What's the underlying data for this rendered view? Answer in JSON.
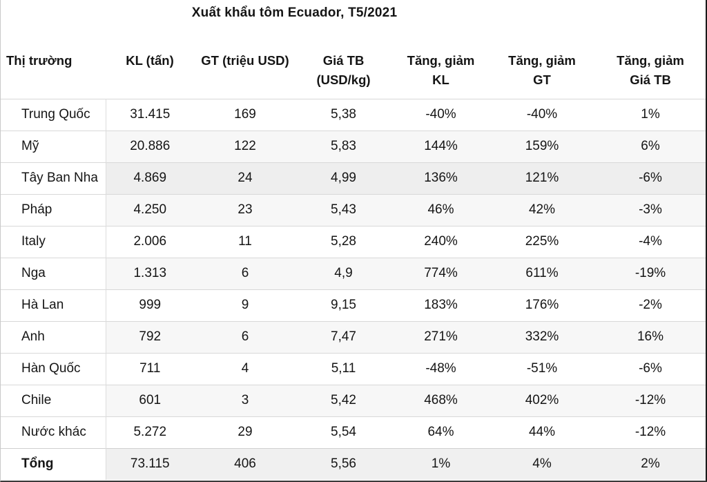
{
  "title": "Xuất khẩu tôm Ecuador, T5/2021",
  "table": {
    "headers": [
      {
        "lines": [
          "Thị trường"
        ]
      },
      {
        "lines": [
          "KL (tấn)"
        ]
      },
      {
        "lines": [
          "GT (triệu USD)"
        ]
      },
      {
        "lines": [
          "Giá TB",
          "(USD/kg)"
        ]
      },
      {
        "lines": [
          "Tăng, giảm",
          "KL"
        ]
      },
      {
        "lines": [
          "Tăng, giảm",
          "GT"
        ]
      },
      {
        "lines": [
          "Tăng, giảm",
          "Giá TB"
        ]
      }
    ],
    "rows": [
      [
        "Trung Quốc",
        "31.415",
        "169",
        "5,38",
        "-40%",
        "-40%",
        "1%"
      ],
      [
        "Mỹ",
        "20.886",
        "122",
        "5,83",
        "144%",
        "159%",
        "6%"
      ],
      [
        "Tây Ban Nha",
        "4.869",
        "24",
        "4,99",
        "136%",
        "121%",
        "-6%"
      ],
      [
        "Pháp",
        "4.250",
        "23",
        "5,43",
        "46%",
        "42%",
        "-3%"
      ],
      [
        "Italy",
        "2.006",
        "11",
        "5,28",
        "240%",
        "225%",
        "-4%"
      ],
      [
        "Nga",
        "1.313",
        "6",
        "4,9",
        "774%",
        "611%",
        "-19%"
      ],
      [
        "Hà Lan",
        "999",
        "9",
        "9,15",
        "183%",
        "176%",
        "-2%"
      ],
      [
        "Anh",
        "792",
        "6",
        "7,47",
        "271%",
        "332%",
        "16%"
      ],
      [
        "Hàn Quốc",
        "711",
        "4",
        "5,11",
        "-48%",
        "-51%",
        "-6%"
      ],
      [
        "Chile",
        "601",
        "3",
        "5,42",
        "468%",
        "402%",
        "-12%"
      ],
      [
        "Nước khác",
        "5.272",
        "29",
        "5,54",
        "64%",
        "44%",
        "-12%"
      ],
      [
        "Tổng",
        "73.115",
        "406",
        "5,56",
        "1%",
        "4%",
        "2%"
      ]
    ]
  },
  "chart_data": {
    "type": "table",
    "title": "Xuất khẩu tôm Ecuador, T5/2021",
    "columns": [
      "Thị trường",
      "KL (tấn)",
      "GT (triệu USD)",
      "Giá TB (USD/kg)",
      "Tăng, giảm KL",
      "Tăng, giảm GT",
      "Tăng, giảm Giá TB"
    ],
    "rows": [
      {
        "market": "Trung Quốc",
        "kl_tan": 31415,
        "gt_trieu_usd": 169,
        "gia_tb_usd_kg": 5.38,
        "tang_giam_kl_pct": -40,
        "tang_giam_gt_pct": -40,
        "tang_giam_gia_tb_pct": 1
      },
      {
        "market": "Mỹ",
        "kl_tan": 20886,
        "gt_trieu_usd": 122,
        "gia_tb_usd_kg": 5.83,
        "tang_giam_kl_pct": 144,
        "tang_giam_gt_pct": 159,
        "tang_giam_gia_tb_pct": 6
      },
      {
        "market": "Tây Ban Nha",
        "kl_tan": 4869,
        "gt_trieu_usd": 24,
        "gia_tb_usd_kg": 4.99,
        "tang_giam_kl_pct": 136,
        "tang_giam_gt_pct": 121,
        "tang_giam_gia_tb_pct": -6
      },
      {
        "market": "Pháp",
        "kl_tan": 4250,
        "gt_trieu_usd": 23,
        "gia_tb_usd_kg": 5.43,
        "tang_giam_kl_pct": 46,
        "tang_giam_gt_pct": 42,
        "tang_giam_gia_tb_pct": -3
      },
      {
        "market": "Italy",
        "kl_tan": 2006,
        "gt_trieu_usd": 11,
        "gia_tb_usd_kg": 5.28,
        "tang_giam_kl_pct": 240,
        "tang_giam_gt_pct": 225,
        "tang_giam_gia_tb_pct": -4
      },
      {
        "market": "Nga",
        "kl_tan": 1313,
        "gt_trieu_usd": 6,
        "gia_tb_usd_kg": 4.9,
        "tang_giam_kl_pct": 774,
        "tang_giam_gt_pct": 611,
        "tang_giam_gia_tb_pct": -19
      },
      {
        "market": "Hà Lan",
        "kl_tan": 999,
        "gt_trieu_usd": 9,
        "gia_tb_usd_kg": 9.15,
        "tang_giam_kl_pct": 183,
        "tang_giam_gt_pct": 176,
        "tang_giam_gia_tb_pct": -2
      },
      {
        "market": "Anh",
        "kl_tan": 792,
        "gt_trieu_usd": 6,
        "gia_tb_usd_kg": 7.47,
        "tang_giam_kl_pct": 271,
        "tang_giam_gt_pct": 332,
        "tang_giam_gia_tb_pct": 16
      },
      {
        "market": "Hàn Quốc",
        "kl_tan": 711,
        "gt_trieu_usd": 4,
        "gia_tb_usd_kg": 5.11,
        "tang_giam_kl_pct": -48,
        "tang_giam_gt_pct": -51,
        "tang_giam_gia_tb_pct": -6
      },
      {
        "market": "Chile",
        "kl_tan": 601,
        "gt_trieu_usd": 3,
        "gia_tb_usd_kg": 5.42,
        "tang_giam_kl_pct": 468,
        "tang_giam_gt_pct": 402,
        "tang_giam_gia_tb_pct": -12
      },
      {
        "market": "Nước khác",
        "kl_tan": 5272,
        "gt_trieu_usd": 29,
        "gia_tb_usd_kg": 5.54,
        "tang_giam_kl_pct": 64,
        "tang_giam_gt_pct": 44,
        "tang_giam_gia_tb_pct": -12
      },
      {
        "market": "Tổng",
        "kl_tan": 73115,
        "gt_trieu_usd": 406,
        "gia_tb_usd_kg": 5.56,
        "tang_giam_kl_pct": 1,
        "tang_giam_gt_pct": 4,
        "tang_giam_gia_tb_pct": 2
      }
    ]
  }
}
